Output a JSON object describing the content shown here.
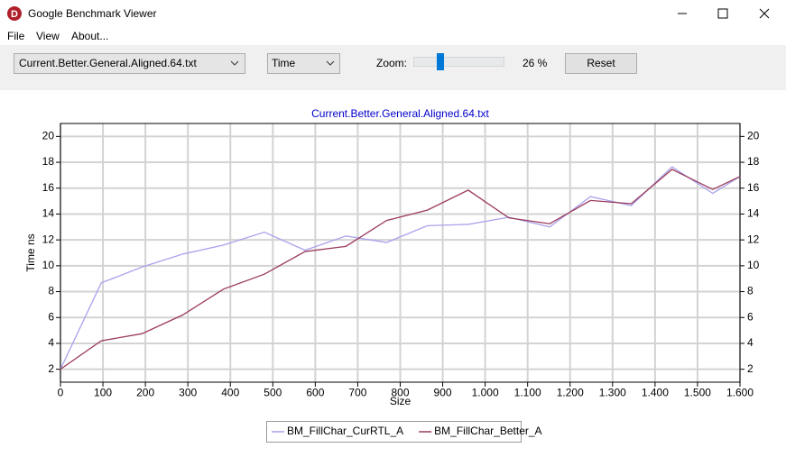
{
  "window": {
    "title": "Google Benchmark Viewer",
    "icon_letter": "D"
  },
  "menu": [
    "File",
    "View",
    "About..."
  ],
  "toolbar": {
    "file_select": "Current.Better.General.Aligned.64.txt",
    "mode_select": "Time",
    "zoom_label": "Zoom:",
    "zoom": {
      "value": 26,
      "label": "26 %"
    },
    "reset_button": "Reset"
  },
  "chart_data": {
    "type": "line",
    "title": "Current.Better.General.Aligned.64.txt",
    "x_label": "Size",
    "y_label": "Time ns",
    "x": [
      0,
      96,
      192,
      288,
      384,
      480,
      576,
      672,
      768,
      864,
      960,
      1056,
      1152,
      1248,
      1344,
      1440,
      1536,
      1600
    ],
    "series": [
      {
        "name": "BM_FillChar_CurRTL_A",
        "color": "#a9a3ec",
        "values": [
          2,
          8.67,
          9.9,
          10.9,
          11.6,
          12.6,
          11.2,
          12.3,
          11.8,
          13.1,
          13.2,
          13.75,
          13.0,
          15.35,
          14.65,
          17.65,
          15.6,
          16.9
        ]
      },
      {
        "name": "BM_FillChar_Better_A",
        "color": "#9b3a5c",
        "values": [
          2,
          4.2,
          4.75,
          6.2,
          8.2,
          9.35,
          11.1,
          11.5,
          13.5,
          14.3,
          15.85,
          13.7,
          13.25,
          15.05,
          14.8,
          17.45,
          15.9,
          16.9
        ]
      }
    ],
    "xlim": [
      0,
      1600
    ],
    "xticks": [
      0,
      100,
      200,
      300,
      400,
      500,
      600,
      700,
      800,
      900,
      {
        "value": 1000,
        "label": "1.000"
      },
      {
        "value": 1100,
        "label": "1.100"
      },
      {
        "value": 1200,
        "label": "1.200"
      },
      {
        "value": 1300,
        "label": "1.300"
      },
      {
        "value": 1400,
        "label": "1.400"
      },
      {
        "value": 1500,
        "label": "1.500"
      },
      {
        "value": 1600,
        "label": "1.600"
      }
    ],
    "ylim": [
      1,
      21
    ],
    "yticks": [
      2,
      4,
      6,
      8,
      10,
      12,
      14,
      16,
      18,
      20
    ],
    "grid": true,
    "legend": "bottom"
  }
}
